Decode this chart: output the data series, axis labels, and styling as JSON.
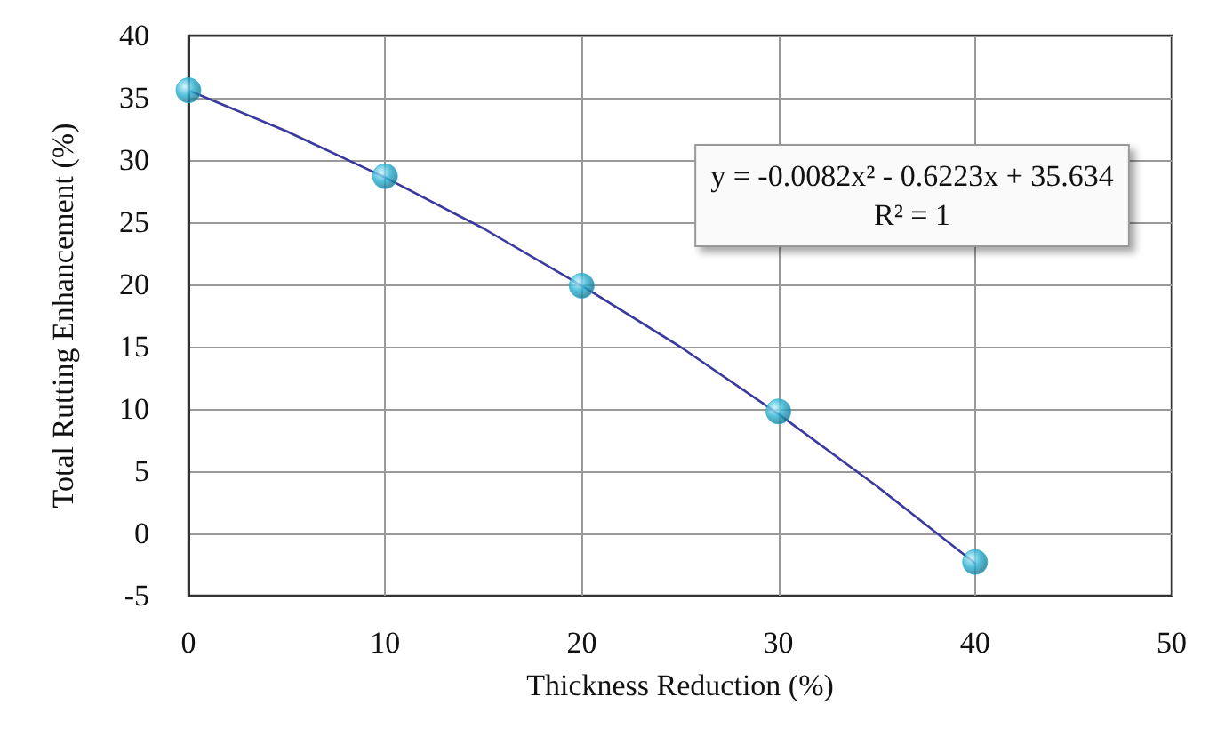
{
  "chart_data": {
    "type": "scatter",
    "xlabel": "Thickness Reduction (%)",
    "ylabel": "Total Rutting Enhancement (%)",
    "xlim": [
      0,
      50
    ],
    "xticks": [
      0,
      10,
      20,
      30,
      40,
      50
    ],
    "ylim": [
      -5,
      40
    ],
    "yticks": [
      -5,
      0,
      5,
      10,
      15,
      20,
      25,
      30,
      35,
      40
    ],
    "grid": true,
    "line_style": "solid",
    "series": [
      {
        "type": "line",
        "marker": "none",
        "color": "#3a3a9e",
        "x": [
          0,
          5,
          10,
          15,
          20,
          25,
          30,
          35,
          40
        ],
        "values": [
          35.6,
          32.3,
          28.6,
          24.5,
          19.9,
          15.0,
          9.6,
          3.8,
          -2.4
        ]
      },
      {
        "marker": "circle",
        "color": "#2bb3d4",
        "x": [
          0,
          10,
          20,
          30,
          40
        ],
        "values": [
          35.6,
          28.7,
          19.9,
          9.8,
          -2.3
        ]
      }
    ],
    "annotations": [
      "y = -0.0082x² - 0.6223x + 35.634\nR² = 1"
    ]
  }
}
